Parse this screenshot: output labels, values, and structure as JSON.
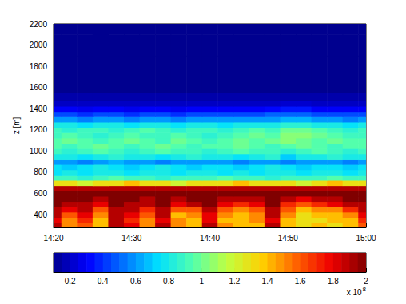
{
  "chart_data": {
    "type": "heatmap",
    "y_label": "z [m]",
    "x": [
      860,
      862,
      864,
      866,
      868,
      870,
      872,
      874,
      876,
      878,
      880,
      882,
      884,
      886,
      888,
      890,
      892,
      894,
      896,
      898,
      900
    ],
    "xlim": [
      860,
      900
    ],
    "xticks": [
      {
        "value": 860,
        "label": "14:20"
      },
      {
        "value": 870,
        "label": "14:30"
      },
      {
        "value": 880,
        "label": "14:40"
      },
      {
        "value": 890,
        "label": "14:50"
      },
      {
        "value": 900,
        "label": "15:00"
      }
    ],
    "z": [
      300,
      350,
      400,
      450,
      500,
      550,
      600,
      650,
      700,
      750,
      800,
      850,
      900,
      950,
      1000,
      1050,
      1100,
      1150,
      1200,
      1250,
      1300,
      1350,
      1400,
      1450,
      1500,
      1600,
      1800,
      2000,
      2200
    ],
    "ylim": [
      280,
      2200
    ],
    "yticks": [
      400,
      600,
      800,
      1000,
      1200,
      1400,
      1600,
      1800,
      2000,
      2200
    ],
    "values": [
      [
        1.9,
        1.5,
        1.6,
        1.4,
        1.9,
        1.8,
        1.5,
        1.9,
        1.5,
        1.4,
        1.9,
        1.5,
        1.4,
        1.4,
        1.9,
        1.4,
        1.3,
        1.4,
        1.3,
        1.4,
        1.6
      ],
      [
        1.8,
        1.5,
        1.7,
        1.4,
        1.9,
        1.7,
        1.5,
        1.8,
        1.5,
        1.4,
        1.8,
        1.4,
        1.4,
        1.5,
        1.8,
        1.4,
        1.3,
        1.3,
        1.4,
        1.4,
        1.7
      ],
      [
        1.9,
        1.6,
        1.8,
        1.5,
        1.9,
        1.8,
        1.6,
        1.9,
        1.4,
        1.5,
        1.8,
        1.5,
        1.4,
        1.5,
        1.9,
        1.5,
        1.3,
        1.4,
        1.4,
        1.5,
        1.8
      ],
      [
        1.9,
        1.8,
        1.9,
        1.6,
        1.9,
        1.9,
        1.7,
        1.9,
        1.6,
        1.6,
        1.9,
        1.6,
        1.5,
        1.6,
        1.9,
        1.6,
        1.4,
        1.5,
        1.5,
        1.7,
        1.9
      ],
      [
        2,
        1.9,
        1.9,
        1.8,
        2,
        1.9,
        1.9,
        2,
        1.8,
        1.9,
        2,
        1.8,
        1.7,
        1.8,
        2,
        1.7,
        1.6,
        1.7,
        1.8,
        1.9,
        1.9
      ],
      [
        2,
        2,
        2,
        1.9,
        2,
        2,
        1.9,
        2,
        1.9,
        2,
        2,
        1.9,
        1.9,
        1.9,
        2,
        1.9,
        1.8,
        1.9,
        1.9,
        2,
        2
      ],
      [
        2,
        2,
        2,
        2,
        2,
        2,
        2,
        2,
        2,
        2,
        2,
        2,
        2,
        2,
        2,
        2,
        2,
        2,
        2,
        2,
        2
      ],
      [
        1.9,
        1.9,
        1.9,
        1.9,
        1.9,
        1.9,
        1.9,
        1.9,
        1.9,
        1.9,
        1.9,
        1.9,
        1.9,
        1.9,
        1.9,
        1.9,
        1.9,
        1.9,
        1.9,
        1.9,
        1.9
      ],
      [
        1.3,
        1.3,
        1.2,
        1.3,
        1.3,
        1.4,
        1.3,
        1.3,
        1.2,
        1.3,
        1.3,
        1.3,
        1.4,
        1.3,
        1.3,
        1.3,
        1.2,
        1.3,
        1.4,
        1.3,
        1.3
      ],
      [
        0.9,
        0.9,
        0.85,
        0.9,
        0.95,
        0.9,
        0.9,
        0.85,
        0.9,
        0.9,
        0.9,
        0.95,
        0.9,
        0.9,
        0.85,
        0.9,
        0.9,
        0.9,
        0.95,
        0.9,
        0.9
      ],
      [
        0.75,
        0.8,
        0.75,
        0.8,
        0.8,
        0.75,
        0.8,
        0.8,
        0.75,
        0.8,
        0.8,
        0.75,
        0.8,
        0.75,
        0.8,
        0.8,
        0.75,
        0.8,
        0.8,
        0.75,
        0.8
      ],
      [
        0.75,
        0.7,
        0.75,
        0.8,
        0.75,
        0.7,
        0.75,
        0.8,
        0.75,
        0.7,
        0.75,
        0.75,
        0.7,
        0.75,
        0.8,
        0.75,
        0.7,
        0.75,
        0.75,
        0.7,
        0.75
      ],
      [
        0.6,
        0.6,
        0.55,
        0.6,
        0.65,
        0.6,
        0.6,
        0.55,
        0.6,
        0.6,
        0.6,
        0.6,
        0.55,
        0.6,
        0.6,
        0.55,
        0.6,
        0.6,
        0.6,
        0.55,
        0.6
      ],
      [
        0.8,
        0.8,
        0.75,
        0.8,
        0.85,
        0.8,
        0.8,
        0.75,
        0.8,
        0.85,
        0.8,
        0.8,
        0.75,
        0.8,
        0.85,
        0.7,
        0.8,
        0.8,
        0.85,
        0.8,
        0.8
      ],
      [
        0.9,
        0.85,
        0.9,
        0.95,
        0.9,
        0.85,
        0.9,
        0.95,
        0.9,
        0.9,
        0.85,
        0.9,
        0.95,
        0.9,
        0.9,
        0.85,
        0.9,
        0.95,
        0.9,
        0.85,
        0.9
      ],
      [
        0.95,
        0.9,
        0.95,
        1.0,
        0.95,
        0.9,
        0.95,
        1.0,
        0.95,
        0.9,
        0.95,
        0.95,
        1.0,
        0.95,
        0.9,
        0.95,
        1.0,
        0.95,
        0.9,
        0.95,
        0.95
      ],
      [
        0.95,
        1.0,
        0.95,
        0.9,
        0.95,
        1.0,
        0.95,
        0.9,
        1.0,
        0.95,
        0.9,
        0.95,
        1.0,
        0.95,
        1.0,
        1.05,
        1.0,
        0.95,
        1.0,
        0.95,
        0.95
      ],
      [
        0.9,
        0.95,
        0.9,
        0.85,
        0.9,
        0.95,
        0.9,
        0.9,
        0.95,
        0.9,
        0.85,
        0.9,
        0.95,
        1.0,
        0.95,
        1.05,
        1.05,
        1.0,
        0.95,
        0.9,
        0.9
      ],
      [
        0.9,
        0.85,
        0.9,
        0.9,
        0.85,
        0.9,
        0.95,
        0.9,
        0.85,
        0.9,
        0.9,
        0.85,
        0.9,
        0.95,
        0.9,
        1.0,
        1.0,
        0.95,
        0.9,
        0.85,
        0.9
      ],
      [
        0.8,
        0.8,
        0.75,
        0.8,
        0.8,
        0.75,
        0.8,
        0.8,
        0.75,
        0.8,
        0.8,
        0.75,
        0.8,
        0.8,
        0.8,
        0.85,
        0.85,
        0.8,
        0.8,
        0.75,
        0.8
      ],
      [
        0.6,
        0.6,
        0.55,
        0.6,
        0.6,
        0.55,
        0.6,
        0.6,
        0.55,
        0.6,
        0.6,
        0.6,
        0.6,
        0.6,
        0.6,
        0.65,
        0.65,
        0.6,
        0.6,
        0.55,
        0.6
      ],
      [
        0.45,
        0.45,
        0.4,
        0.45,
        0.45,
        0.4,
        0.45,
        0.45,
        0.4,
        0.45,
        0.45,
        0.45,
        0.45,
        0.45,
        0.5,
        0.5,
        0.5,
        0.45,
        0.45,
        0.45,
        0.45
      ],
      [
        0.3,
        0.3,
        0.28,
        0.3,
        0.3,
        0.28,
        0.3,
        0.3,
        0.28,
        0.3,
        0.3,
        0.3,
        0.3,
        0.3,
        0.32,
        0.35,
        0.35,
        0.3,
        0.3,
        0.3,
        0.3
      ],
      [
        0.2,
        0.2,
        0.2,
        0.2,
        0.2,
        0.2,
        0.2,
        0.2,
        0.2,
        0.2,
        0.2,
        0.2,
        0.2,
        0.2,
        0.2,
        0.22,
        0.22,
        0.2,
        0.2,
        0.2,
        0.2
      ],
      [
        0.15,
        0.15,
        0.15,
        0.15,
        0.15,
        0.15,
        0.15,
        0.15,
        0.15,
        0.15,
        0.15,
        0.15,
        0.15,
        0.15,
        0.15,
        0.15,
        0.15,
        0.15,
        0.15,
        0.15,
        0.15
      ],
      [
        0.1,
        0.1,
        0.1,
        0.1,
        0.1,
        0.1,
        0.1,
        0.1,
        0.1,
        0.1,
        0.1,
        0.1,
        0.1,
        0.1,
        0.1,
        0.1,
        0.1,
        0.1,
        0.1,
        0.1,
        0.1
      ],
      [
        0.1,
        0.1,
        0.1,
        0.1,
        0.1,
        0.1,
        0.1,
        0.1,
        0.1,
        0.1,
        0.1,
        0.1,
        0.1,
        0.1,
        0.1,
        0.1,
        0.1,
        0.1,
        0.1,
        0.1,
        0.1
      ],
      [
        0.1,
        0.1,
        0.1,
        0.1,
        0.1,
        0.1,
        0.1,
        0.1,
        0.1,
        0.1,
        0.1,
        0.1,
        0.1,
        0.1,
        0.1,
        0.1,
        0.1,
        0.1,
        0.1,
        0.1,
        0.1
      ],
      [
        0.1,
        0.1,
        0.1,
        0.1,
        0.1,
        0.1,
        0.1,
        0.1,
        0.1,
        0.1,
        0.1,
        0.1,
        0.1,
        0.1,
        0.1,
        0.1,
        0.1,
        0.1,
        0.1,
        0.1,
        0.1
      ]
    ],
    "colorbar": {
      "range": [
        0.1,
        2
      ],
      "ticks": [
        0.2,
        0.4,
        0.6,
        0.8,
        1,
        1.2,
        1.4,
        1.6,
        1.8,
        2
      ],
      "multiplier": "x 10",
      "exponent": "8"
    }
  }
}
